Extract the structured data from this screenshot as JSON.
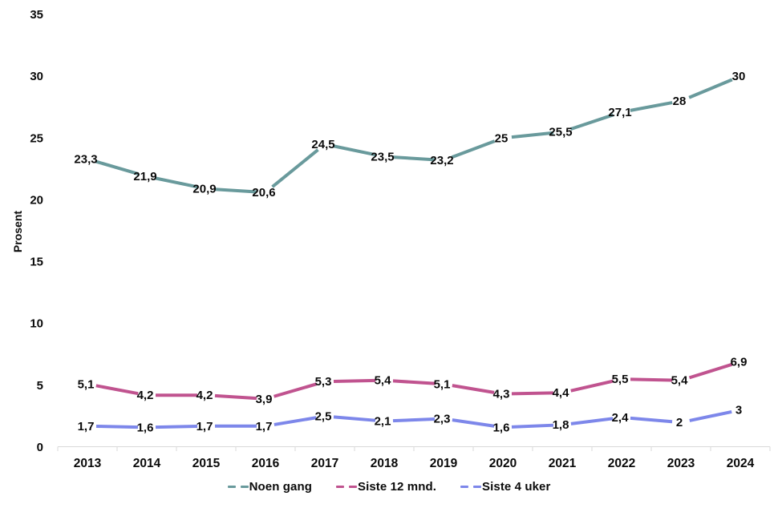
{
  "chart_data": {
    "type": "line",
    "title": "",
    "xlabel": "",
    "ylabel": "Prosent",
    "categories": [
      "2013",
      "2014",
      "2015",
      "2016",
      "2017",
      "2018",
      "2019",
      "2020",
      "2021",
      "2022",
      "2023",
      "2024"
    ],
    "y_ticks": [
      0,
      5,
      10,
      15,
      20,
      25,
      30,
      35
    ],
    "ylim": [
      0,
      35
    ],
    "grid": false,
    "line_style": "dashed",
    "legend_position": "bottom",
    "axis_color": "#d9d9d9",
    "label_color": "#0a0a0a",
    "series": [
      {
        "name": "Noen gang",
        "color": "#699a9c",
        "values": [
          23.3,
          21.9,
          20.9,
          20.6,
          24.5,
          23.5,
          23.2,
          25,
          25.5,
          27.1,
          28,
          30
        ],
        "point_labels": [
          "23,3",
          "21,9",
          "20,9",
          "20,6",
          "24,5",
          "23,5",
          "23,2",
          "25",
          "25,5",
          "27,1",
          "28",
          "30"
        ]
      },
      {
        "name": "Siste 12 mnd.",
        "color": "#c0538f",
        "values": [
          5.1,
          4.2,
          4.2,
          3.9,
          5.3,
          5.4,
          5.1,
          4.3,
          4.4,
          5.5,
          5.4,
          6.9
        ],
        "point_labels": [
          "5,1",
          "4,2",
          "4,2",
          "3,9",
          "5,3",
          "5,4",
          "5,1",
          "4,3",
          "4,4",
          "5,5",
          "5,4",
          "6,9"
        ]
      },
      {
        "name": "Siste 4 uker",
        "color": "#7d87ea",
        "values": [
          1.7,
          1.6,
          1.7,
          1.7,
          2.5,
          2.1,
          2.3,
          1.6,
          1.8,
          2.4,
          2,
          3
        ],
        "point_labels": [
          "1,7",
          "1,6",
          "1,7",
          "1,7",
          "2,5",
          "2,1",
          "2,3",
          "1,6",
          "1,8",
          "2,4",
          "2",
          "3"
        ]
      }
    ]
  }
}
